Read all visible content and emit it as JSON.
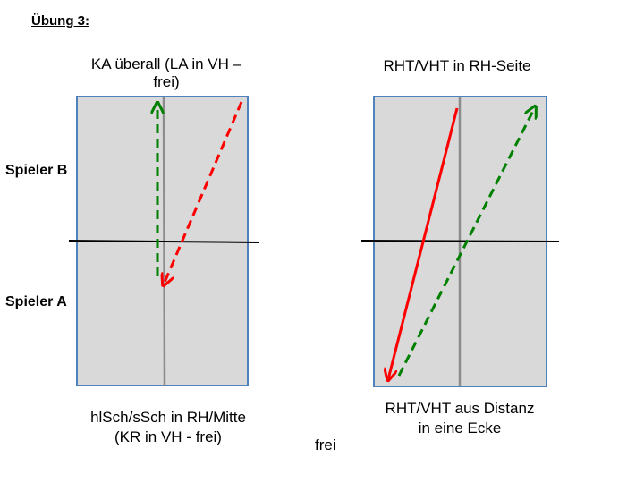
{
  "title": "Übung 3:",
  "player_labels": {
    "b": "Spieler B",
    "a": "Spieler A"
  },
  "diagrams": [
    {
      "top_caption": "KA überall (LA in VH –\nfrei)",
      "bottom_caption": "hlSch/sSch in RH/Mitte\n(KR in VH - frei)"
    },
    {
      "top_caption": "RHT/VHT in RH-Seite",
      "bottom_caption": "RHT/VHT aus Distanz\nin eine Ecke"
    }
  ],
  "free_text": "frei",
  "colors": {
    "court_fill": "#d9d9d9",
    "court_border": "#4f81bd",
    "center_line": "#8c8c8c",
    "net": "#000000",
    "red_arrow": "#ff0000",
    "green_arrow": "#008000"
  }
}
